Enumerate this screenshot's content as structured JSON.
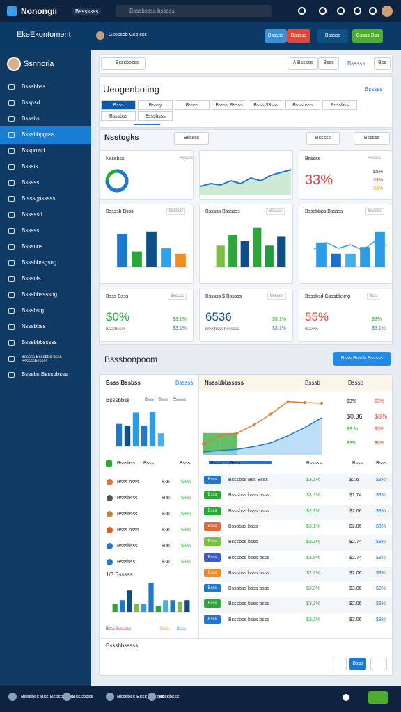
{
  "topbar": {
    "logo": "Nonongii",
    "menu": "Bsssssss",
    "search": "Bsssbssss bsssss"
  },
  "header": {
    "title": "EkeEkontoment",
    "user": "Gsossob Gsb sss",
    "buttons": [
      "Bsssss",
      "Bsssss",
      "Bsssss",
      "Gssss Bss"
    ],
    "button_colors": [
      "#3a8fd8",
      "#e0453a",
      "#0f4f86",
      "#4cae2c"
    ]
  },
  "sidebar": {
    "user": "Ssnnoria",
    "active": 3,
    "items": [
      "Bsssbbss",
      "Bsspsd",
      "Bsssbs",
      "Bsssbbpgsss",
      "Bssprosd",
      "Bsssts",
      "Bsssss",
      "Btsssgpsssss",
      "Bsssssd",
      "Bsssss",
      "Bsssnns",
      "Bsssbbrsgsng",
      "Bsssnis",
      "Bsssbbssssng",
      "Bsssbsig",
      "Nsssbbss",
      "Bsssbbbsssss",
      "Bsssss Bsssbbd bsss Bsssssbsssss",
      "Bsssbs Bsssbbsss"
    ]
  },
  "toolbar": {
    "search": "Bsssbbsss",
    "filter": "A Bsssss",
    "filter2": "Bsss",
    "link": "Bsssss",
    "button": "Bss"
  },
  "overview": {
    "title": "Ueogenboting",
    "link": "Bsssss",
    "tabs": [
      "Bsss",
      "Bsssy",
      "Bssss",
      "Bssss Bssss",
      "Bsss $3sss",
      "Bsssbsss",
      "Bsssbss",
      "Bsssbss",
      "Bsssbsss"
    ]
  },
  "insights": {
    "title": "Nsstogks",
    "search": "Bsssss",
    "filter": "Bsssss",
    "filter2": "Bsssss",
    "donut": {
      "title": "Nsssbss",
      "sub": "Bsssss",
      "value": 75,
      "max": 100
    },
    "line": {
      "values": [
        3,
        4,
        3.5,
        5,
        4,
        6,
        5,
        7,
        8,
        9
      ],
      "ylim": [
        0,
        10
      ]
    },
    "stat": {
      "title": "Bsssss",
      "sub": "Bsssss",
      "big": "33%",
      "stats": [
        "$5%",
        "33%",
        "33%"
      ]
    },
    "bars": [
      {
        "title": "Bssssb Bsss",
        "sub": "Bsssss",
        "values": [
          75,
          35,
          80,
          42,
          30
        ],
        "colors": [
          "#1f77d0",
          "#2aa838",
          "#0f4f86",
          "#33a0e8",
          "#f28b22"
        ],
        "ylim": [
          0,
          100
        ]
      },
      {
        "title": "Bsssss Bssssss",
        "sub": "Bsssss",
        "values": [
          48,
          72,
          58,
          88,
          48,
          68
        ],
        "colors": [
          "#7bc043",
          "#2aa838",
          "#0f4f86",
          "#2aa838",
          "#1e9e3a",
          "#0f4f86"
        ],
        "ylim": [
          0,
          100
        ]
      },
      {
        "title": "Bsssbbps Bsssss",
        "sub": "Bsssss",
        "values": [
          55,
          30,
          30,
          45,
          80
        ],
        "colors": [
          "#2b9ce8",
          "#1f6fd0",
          "#47aef0",
          "#2b9ce8",
          "#2b9ce8"
        ],
        "line": [
          40,
          55,
          42,
          50,
          38,
          58,
          48
        ],
        "ylim": [
          0,
          100
        ]
      }
    ],
    "kpis": [
      {
        "title": "Bsss Bsss",
        "sub": "Bsssss",
        "big": "$0%",
        "color": "#2aa838",
        "note": "Bsssbssss",
        "stats": [
          "$3.1%",
          "$3.1%"
        ]
      },
      {
        "title": "Bsssss $ Bsssss",
        "sub": "Bsssss",
        "big": "6536",
        "color": "#0f4f86",
        "note": "Bsssbsss bssssss",
        "stats": [
          "$3.1%",
          "$3.1%"
        ]
      },
      {
        "title": "Bsssbsd Gsssbbsing",
        "sub": "Bss",
        "big": "55%",
        "color": "#e0453a",
        "note": "Bsssss",
        "stats": [
          "$3%",
          "$3.1%"
        ]
      }
    ]
  },
  "section": {
    "title": "Bsssbonpoom",
    "button": "Bsss Bsssb Bsssss"
  },
  "left": {
    "title": "Bsss Bssbss",
    "link": "Bsssss",
    "chart_title": "Bsssbbss",
    "chart_tabs": [
      "Bsss",
      "Bsss",
      "Bsssss"
    ],
    "chart": {
      "values": [
        60,
        55,
        90,
        55,
        92,
        35
      ],
      "colors": [
        "#1f77d0",
        "#0f4f86",
        "#2b9ce8",
        "#1f77d0",
        "#2b9ce8",
        "#47aef0"
      ],
      "ylim": [
        0,
        100
      ]
    },
    "table_header": [
      "Bsssbss",
      "Bsss",
      "Bsss"
    ],
    "rows": [
      [
        "Bsss bsss",
        "$36",
        "$3%"
      ],
      [
        "Bsssbsss",
        "$00",
        "$3%"
      ],
      [
        "Bsssbsss",
        "$30",
        "$3%"
      ],
      [
        "Bsss bsss",
        "$30",
        "$3%"
      ],
      [
        "Bsssbsss",
        "$00",
        "$3%"
      ],
      [
        "Bsssbss",
        "$30",
        "$3%"
      ]
    ],
    "row_colors": [
      "#e0703a",
      "#555",
      "#c0883a",
      "#e05a2a",
      "#1f77d0",
      "#1f77d0"
    ],
    "chart2_title": "1/3 Bsssss",
    "chart2": {
      "values": [
        20,
        30,
        55,
        20,
        20,
        75,
        15,
        30,
        30,
        25,
        30
      ],
      "colors": [
        "#2aa838",
        "#1f77d0",
        "#0f4f86",
        "#7bc043",
        "#2b9ce8",
        "#1f77d0",
        "#2aa838",
        "#47aef0",
        "#1f77d0",
        "#7bc043",
        "#0f4f86"
      ],
      "ylim": [
        0,
        100
      ]
    },
    "legend": [
      "Bsss",
      "Bsssbss",
      "Bsss",
      "Bsss"
    ],
    "legend_colors": [
      "#333",
      "#e0453a",
      "#c8a020",
      "#2b9ce8"
    ]
  },
  "right": {
    "title": "Nsssbbbsssss",
    "col1": "Bsssb",
    "col2": "Bsssb",
    "orange": [
      20,
      35,
      40,
      55,
      75,
      98,
      96,
      95
    ],
    "blue": [
      5,
      8,
      10,
      15,
      22,
      35,
      50,
      68
    ],
    "green": [
      40,
      40,
      0,
      0,
      0,
      0,
      0,
      0
    ],
    "ylim": [
      0,
      100
    ],
    "stats": [
      [
        "$3%",
        "$3%"
      ],
      [
        "$0.36",
        "$3%"
      ],
      [
        "$3.%",
        "$3%"
      ],
      [
        "$3%",
        "$0%"
      ]
    ],
    "table_header": [
      "Bsss",
      "Bsss",
      "Bsssss",
      "Bsss",
      "Bsss"
    ],
    "rows": [
      [
        "Bsss",
        "Bsssbss Bss Bsss",
        "$3.1%",
        "$2.6",
        "$3%"
      ],
      [
        "Bsss",
        "Bsssbss bsss bsss",
        "$3.1%",
        "$1.74",
        "$3%"
      ],
      [
        "Bsss",
        "Bsssbss bsss bsss",
        "$2.1%",
        "$2.06",
        "$3%"
      ],
      [
        "Bsss",
        "Bsssbss bsss",
        "$3.1%",
        "$2.06",
        "$3%"
      ],
      [
        "Bsss",
        "Bsssbss bsss",
        "$3.3%",
        "$2.74",
        "$3%"
      ],
      [
        "Bsss",
        "Bsssbss bsss bsss",
        "$3.5%",
        "$2.74",
        "$3%"
      ],
      [
        "Bsss",
        "Bsssbss bsss bsss",
        "$2.1%",
        "$2.06",
        "$3%"
      ],
      [
        "Bsss",
        "Bsssbss bsss bsss",
        "$3.3%",
        "$3.06",
        "$3%"
      ],
      [
        "Bsss",
        "Bsssbss bsss bsss",
        "$3.3%",
        "$2.06",
        "$3%"
      ],
      [
        "Bsss",
        "Bsssbss bsss bsss",
        "$3.3%",
        "$3.06",
        "$3%"
      ]
    ],
    "badge_colors": [
      "#1f77d0",
      "#2aa838",
      "#2aa838",
      "#e06a3a",
      "#7bc043",
      "#3a5ad0",
      "#f28b22",
      "#1f77d0",
      "#2aa838",
      "#1f77d0"
    ]
  },
  "footer": {
    "title": "Bsssbbsssss",
    "page": "Bsss"
  },
  "bottombar": {
    "items": [
      "Bsssbss Bss Bsssbbsss",
      "Bsssbbss",
      "Bsssbss Bsss Bsssss",
      "Bsssbsss"
    ]
  }
}
